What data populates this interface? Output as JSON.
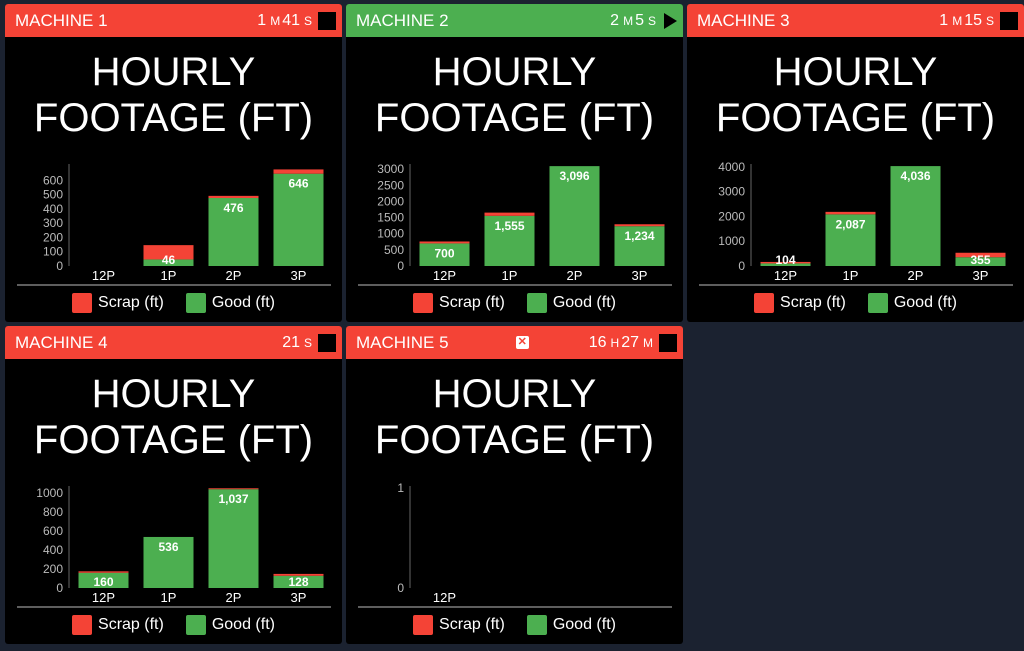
{
  "colors": {
    "scrap": "#f44336",
    "good": "#4caf50",
    "header_red": "#f44336",
    "header_green": "#4caf50"
  },
  "legend": {
    "scrap_label": "Scrap (ft)",
    "good_label": "Good (ft)"
  },
  "machines": [
    {
      "name": "MACHINE 1",
      "status": "red",
      "timer": {
        "v1": "1",
        "u1": "M",
        "v2": "41",
        "u2": "S"
      },
      "action_icon": "stop-icon",
      "title_line1": "HOURLY",
      "title_line2": "FOOTAGE (FT)"
    },
    {
      "name": "MACHINE 2",
      "status": "green",
      "timer": {
        "v1": "2",
        "u1": "M",
        "v2": "5",
        "u2": "S"
      },
      "action_icon": "play-icon",
      "title_line1": "HOURLY",
      "title_line2": "FOOTAGE (FT)"
    },
    {
      "name": "MACHINE 3",
      "status": "red",
      "timer": {
        "v1": "1",
        "u1": "M",
        "v2": "15",
        "u2": "S"
      },
      "action_icon": "stop-icon",
      "title_line1": "HOURLY",
      "title_line2": "FOOTAGE (FT)"
    },
    {
      "name": "MACHINE 4",
      "status": "red",
      "timer": {
        "v1": "",
        "u1": "",
        "v2": "21",
        "u2": "S"
      },
      "action_icon": "stop-icon",
      "title_line1": "HOURLY",
      "title_line2": "FOOTAGE (FT)"
    },
    {
      "name": "MACHINE 5",
      "status": "red",
      "timer": {
        "v1": "16",
        "u1": "H",
        "v2": "27",
        "u2": "M"
      },
      "action_icon": "stop-icon",
      "status_icon": "disconnected-icon",
      "title_line1": "HOURLY",
      "title_line2": "FOOTAGE (FT)"
    }
  ],
  "chart_data": [
    {
      "type": "bar",
      "stacked": true,
      "categories": [
        "12P",
        "1P",
        "2P",
        "3P"
      ],
      "yticks": [
        0,
        100,
        200,
        300,
        400,
        500,
        600
      ],
      "ylim": [
        0,
        700
      ],
      "series": [
        {
          "name": "Good (ft)",
          "values": [
            0,
            46,
            476,
            646
          ]
        },
        {
          "name": "Scrap (ft)",
          "values": [
            0,
            100,
            15,
            30
          ]
        }
      ],
      "labels": [
        "",
        "46",
        "476",
        "646"
      ]
    },
    {
      "type": "bar",
      "stacked": true,
      "categories": [
        "12P",
        "1P",
        "2P",
        "3P"
      ],
      "yticks": [
        0,
        500,
        1000,
        1500,
        2000,
        2500,
        3000
      ],
      "ylim": [
        0,
        3100
      ],
      "series": [
        {
          "name": "Good (ft)",
          "values": [
            700,
            1555,
            3096,
            1234
          ]
        },
        {
          "name": "Scrap (ft)",
          "values": [
            60,
            100,
            0,
            60
          ]
        }
      ],
      "labels": [
        "700",
        "1,555",
        "3,096",
        "1,234"
      ]
    },
    {
      "type": "bar",
      "stacked": true,
      "categories": [
        "12P",
        "1P",
        "2P",
        "3P"
      ],
      "yticks": [
        0,
        1000,
        2000,
        3000,
        4000
      ],
      "ylim": [
        0,
        4040
      ],
      "series": [
        {
          "name": "Good (ft)",
          "values": [
            104,
            2087,
            4036,
            355
          ]
        },
        {
          "name": "Scrap (ft)",
          "values": [
            60,
            100,
            0,
            180
          ]
        }
      ],
      "labels": [
        "104",
        "2,087",
        "4,036",
        "355"
      ]
    },
    {
      "type": "bar",
      "stacked": true,
      "categories": [
        "12P",
        "1P",
        "2P",
        "3P"
      ],
      "yticks": [
        0,
        200,
        400,
        600,
        800,
        1000
      ],
      "ylim": [
        0,
        1050
      ],
      "series": [
        {
          "name": "Good (ft)",
          "values": [
            160,
            536,
            1037,
            128
          ]
        },
        {
          "name": "Scrap (ft)",
          "values": [
            15,
            0,
            10,
            20
          ]
        }
      ],
      "labels": [
        "160",
        "536",
        "1,037",
        "128"
      ]
    },
    {
      "type": "bar",
      "stacked": true,
      "categories": [
        "12P"
      ],
      "yticks": [
        0,
        1
      ],
      "ylim": [
        0,
        1
      ],
      "series": [
        {
          "name": "Good (ft)",
          "values": [
            0
          ]
        },
        {
          "name": "Scrap (ft)",
          "values": [
            0
          ]
        }
      ],
      "labels": [
        ""
      ]
    }
  ]
}
